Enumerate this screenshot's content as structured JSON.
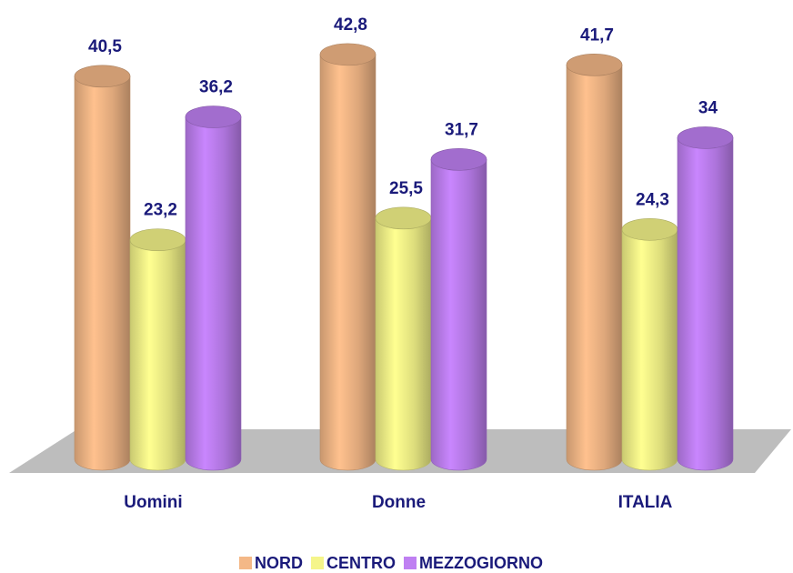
{
  "chart_data": {
    "type": "bar",
    "categories": [
      "Uomini",
      "Donne",
      "ITALIA"
    ],
    "series": [
      {
        "name": "NORD",
        "color": "#f4b887",
        "values": [
          40.5,
          42.8,
          41.7
        ],
        "value_labels": [
          "40,5",
          "42,8",
          "41,7"
        ]
      },
      {
        "name": "CENTRO",
        "color": "#f5f58a",
        "values": [
          23.2,
          25.5,
          24.3
        ],
        "value_labels": [
          "23,2",
          "25,5",
          "24,3"
        ]
      },
      {
        "name": "MEZZOGIORNO",
        "color": "#bf80f2",
        "values": [
          36.2,
          31.7,
          34
        ],
        "value_labels": [
          "36,2",
          "31,7",
          "34"
        ]
      }
    ],
    "legend": "bottom"
  }
}
